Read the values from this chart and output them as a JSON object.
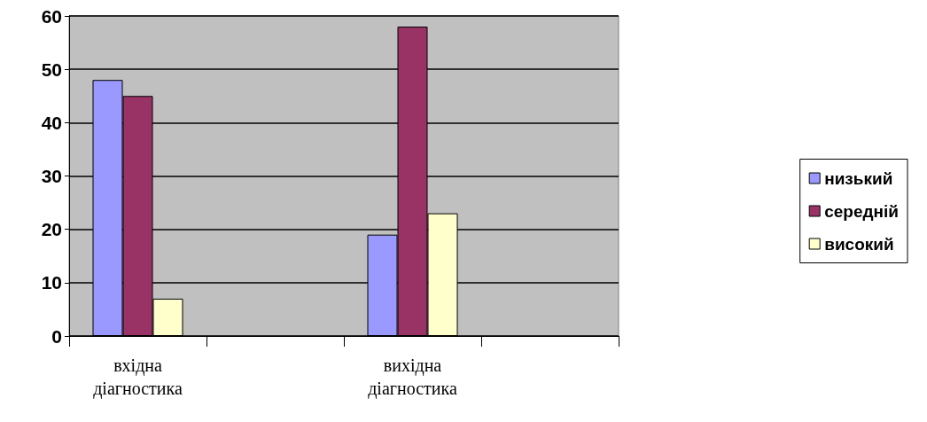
{
  "chart_data": {
    "type": "bar",
    "categories": [
      "вхідна діагностика",
      null,
      "вихідна діагностика",
      null
    ],
    "series": [
      {
        "name": "низький",
        "color": "#9999ff",
        "values": [
          48,
          null,
          19,
          null
        ]
      },
      {
        "name": "середній",
        "color": "#993366",
        "values": [
          45,
          null,
          58,
          null
        ]
      },
      {
        "name": "високий",
        "color": "#ffffcc",
        "values": [
          7,
          null,
          23,
          null
        ]
      }
    ],
    "ylim": [
      0,
      60
    ],
    "yticks": [
      0,
      10,
      20,
      30,
      40,
      50,
      60
    ],
    "grid": "y",
    "legend": "right"
  }
}
